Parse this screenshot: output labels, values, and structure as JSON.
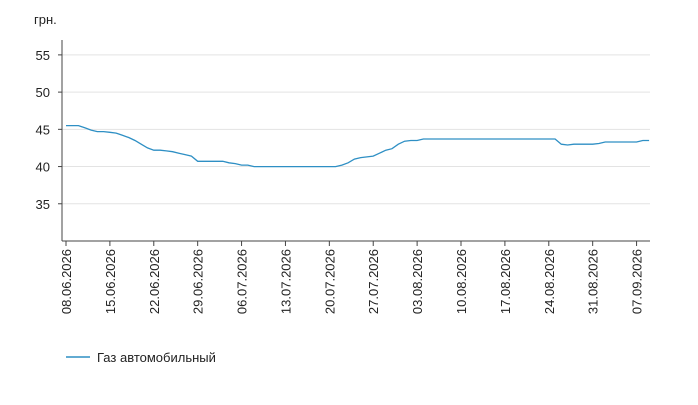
{
  "chart_data": {
    "type": "line",
    "y_unit_label": "грн.",
    "categories": [
      "08.06.2026",
      null,
      null,
      null,
      null,
      null,
      null,
      "15.06.2026",
      null,
      null,
      null,
      null,
      null,
      null,
      "22.06.2026",
      null,
      null,
      null,
      null,
      null,
      null,
      "29.06.2026",
      null,
      null,
      null,
      null,
      null,
      null,
      "06.07.2026",
      null,
      null,
      null,
      null,
      null,
      null,
      "13.07.2026",
      null,
      null,
      null,
      null,
      null,
      null,
      "20.07.2026",
      null,
      null,
      null,
      null,
      null,
      null,
      "27.07.2026",
      null,
      null,
      null,
      null,
      null,
      null,
      "03.08.2026",
      null,
      null,
      null,
      null,
      null,
      null,
      "10.08.2026",
      null,
      null,
      null,
      null,
      null,
      null,
      "17.08.2026",
      null,
      null,
      null,
      null,
      null,
      null,
      "24.08.2026",
      null,
      null,
      null,
      null,
      null,
      null,
      "31.08.2026",
      null,
      null,
      null,
      null,
      null,
      null,
      "07.09.2026",
      null,
      null
    ],
    "series": [
      {
        "name": "Газ автомобильный",
        "color": "#2e8fc4",
        "values": [
          45.5,
          45.5,
          45.5,
          45.2,
          44.9,
          44.7,
          44.7,
          44.6,
          44.5,
          44.2,
          43.9,
          43.5,
          43.0,
          42.5,
          42.2,
          42.2,
          42.1,
          42.0,
          41.8,
          41.6,
          41.4,
          40.7,
          40.7,
          40.7,
          40.7,
          40.7,
          40.5,
          40.4,
          40.2,
          40.2,
          40.0,
          40.0,
          40.0,
          40.0,
          40.0,
          40.0,
          40.0,
          40.0,
          40.0,
          40.0,
          40.0,
          40.0,
          40.0,
          40.0,
          40.2,
          40.5,
          41.0,
          41.2,
          41.3,
          41.4,
          41.8,
          42.2,
          42.4,
          43.0,
          43.4,
          43.5,
          43.5,
          43.7,
          43.7,
          43.7,
          43.7,
          43.7,
          43.7,
          43.7,
          43.7,
          43.7,
          43.7,
          43.7,
          43.7,
          43.7,
          43.7,
          43.7,
          43.7,
          43.7,
          43.7,
          43.7,
          43.7,
          43.7,
          43.7,
          43.0,
          42.9,
          43.0,
          43.0,
          43.0,
          43.0,
          43.1,
          43.3,
          43.3,
          43.3,
          43.3,
          43.3,
          43.3,
          43.5,
          43.5
        ]
      }
    ],
    "ylim": [
      30,
      57
    ],
    "yticks": [
      35,
      40,
      45,
      50,
      55
    ],
    "grid": true,
    "legend": "bottom-left"
  }
}
